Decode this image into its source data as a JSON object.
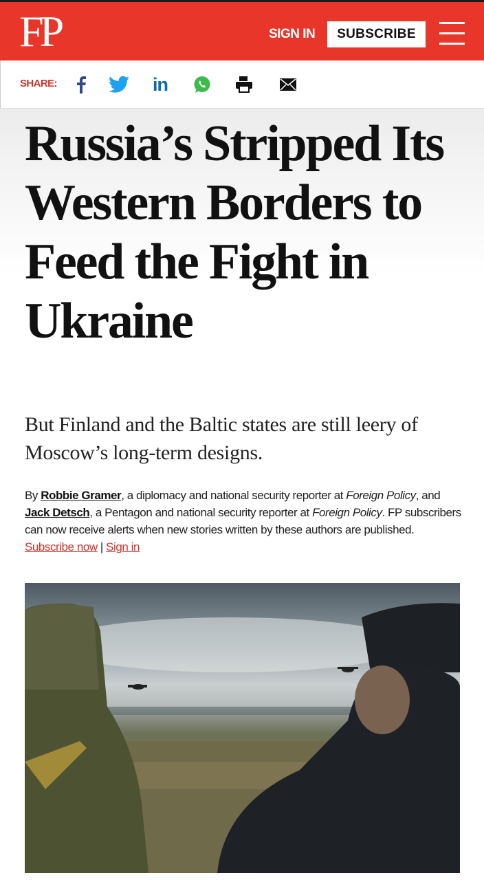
{
  "header": {
    "logo": "FP",
    "sign_in": "SIGN IN",
    "subscribe": "SUBSCRIBE",
    "brand_color": "#e8372a"
  },
  "share": {
    "label": "SHARE:",
    "icons": [
      "facebook-icon",
      "twitter-icon",
      "linkedin-icon",
      "whatsapp-icon",
      "print-icon",
      "email-icon"
    ]
  },
  "article": {
    "headline": "Russia’s Stripped Its Western Borders to Feed the Fight in Ukraine",
    "deck": "But Finland and the Baltic states are still leery of Moscow’s long-term designs.",
    "byline": {
      "by": "By ",
      "author1": "Robbie Gramer",
      "desc1": ", a diplomacy and national security reporter at ",
      "pub1": "Foreign Policy",
      "mid": ", and ",
      "author2": "Jack Detsch",
      "desc2": ", a Pentagon and national security reporter at ",
      "pub2": "Foreign Policy",
      "alerts": ". FP subscribers can now receive alerts when new stories written by these authors are published. ",
      "subscribe_now": "Subscribe now",
      "sep": " | ",
      "sign_in": "Sign in"
    }
  }
}
